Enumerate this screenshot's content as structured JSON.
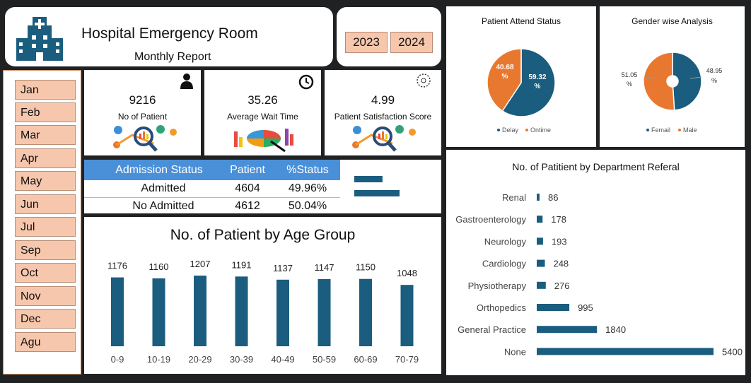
{
  "header": {
    "title": "Hospital Emergency Room",
    "subtitle": "Monthly Report"
  },
  "years": [
    "2023",
    "2024"
  ],
  "months": [
    "Jan",
    "Feb",
    "Mar",
    "Apr",
    "May",
    "Jun",
    "Jul",
    "Sep",
    "Oct",
    "Nov",
    "Dec",
    "Agu"
  ],
  "kpis": [
    {
      "value": "9216",
      "label": "No of Patient",
      "icon": "person-icon"
    },
    {
      "value": "35.26",
      "label": "Average Wait Time",
      "icon": "clock-icon"
    },
    {
      "value": "4.99",
      "label": "Patient Satisfaction Score",
      "icon": "dotted-circle-icon"
    }
  ],
  "admission": {
    "headers": [
      "Admission Status",
      "Patient",
      "%Status"
    ],
    "rows": [
      [
        "Admitted",
        "4604",
        "49.96%"
      ],
      [
        "No Admitted",
        "4612",
        "50.04%"
      ]
    ],
    "bars": [
      4604,
      4612
    ]
  },
  "colors": {
    "blue": "#1a5d7e",
    "orange": "#e8782f",
    "peach": "#f7c7ad",
    "header_blue": "#4a90d9"
  },
  "chart_data": [
    {
      "type": "pie",
      "title": "Patient Attend Status",
      "labels": [
        "Delay",
        "Ontime"
      ],
      "values": [
        40.68,
        59.32
      ],
      "data_labels": [
        "40.68 %",
        "59.32 %"
      ],
      "legend": "bottom"
    },
    {
      "type": "pie",
      "title": "Gender wise Analysis",
      "labels": [
        "Femail",
        "Male"
      ],
      "values": [
        51.05,
        48.95
      ],
      "data_labels": [
        "51.05 %",
        "48.95 %"
      ],
      "legend": "bottom"
    },
    {
      "type": "bar",
      "title": "No. of Patient by Age Group",
      "categories": [
        "0-9",
        "10-19",
        "20-29",
        "30-39",
        "40-49",
        "50-59",
        "60-69",
        "70-79"
      ],
      "values": [
        1176,
        1160,
        1207,
        1191,
        1137,
        1147,
        1150,
        1048
      ]
    },
    {
      "type": "bar",
      "orientation": "horizontal",
      "title": "No. of Patitient by Department Referal",
      "categories": [
        "Renal",
        "Gastroenterology",
        "Neurology",
        "Cardiology",
        "Physiotherapy",
        "Orthopedics",
        "General Practice",
        "None"
      ],
      "values": [
        86,
        178,
        193,
        248,
        276,
        995,
        1840,
        5400
      ]
    }
  ]
}
